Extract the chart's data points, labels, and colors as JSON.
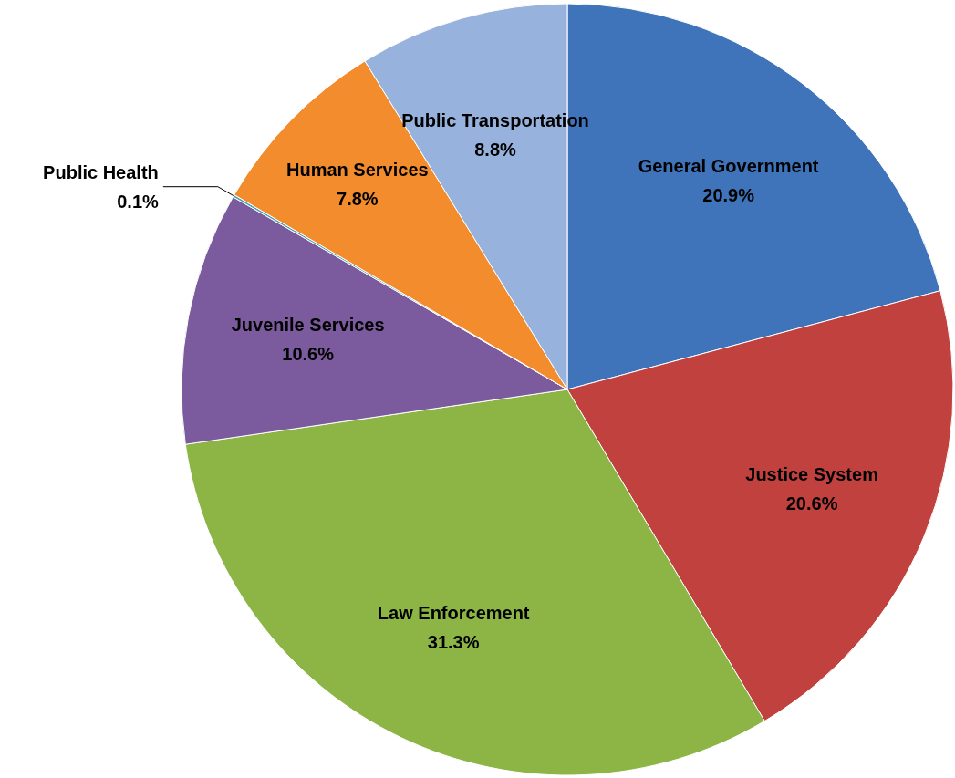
{
  "chart_data": {
    "type": "pie",
    "categories": [
      "General Government",
      "Justice System",
      "Law Enforcement",
      "Juvenile Services",
      "Public Health",
      "Human Services",
      "Public Transportation"
    ],
    "values": [
      20.9,
      20.6,
      31.3,
      10.6,
      0.1,
      7.8,
      8.8
    ],
    "value_labels": [
      "20.9%",
      "20.6%",
      "31.3%",
      "10.6%",
      "0.1%",
      "7.8%",
      "8.8%"
    ],
    "colors": [
      "#3f74ba",
      "#c0413d",
      "#8db545",
      "#7b5b9d",
      "#4aa3b8",
      "#f28c2c",
      "#97b2dc"
    ],
    "legend": false
  }
}
